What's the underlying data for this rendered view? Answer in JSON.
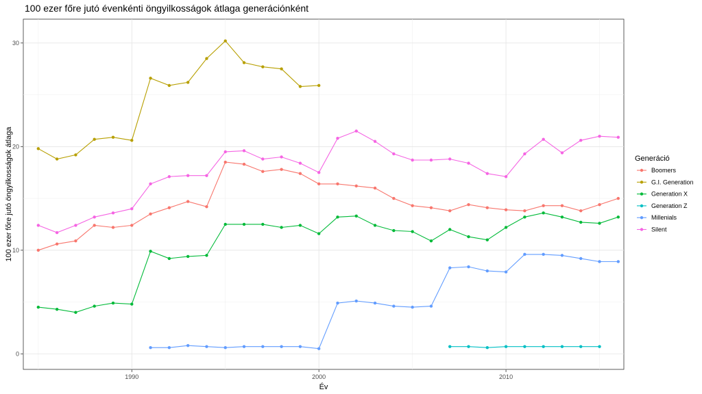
{
  "chart_data": {
    "type": "line",
    "title": "100 ezer főre jutó évenkénti öngyilkosságok átlaga generációnként",
    "xlabel": "Év",
    "ylabel": "100 ezer főre jutó öngyilkosságok átlaga",
    "xlim": [
      1984.2,
      2016.3
    ],
    "ylim": [
      -1.5,
      32.3
    ],
    "x_ticks": [
      1990,
      2000,
      2010
    ],
    "y_ticks": [
      0,
      10,
      20,
      30
    ],
    "grid": true,
    "legend": {
      "title": "Generáció",
      "placement": "right"
    },
    "series": [
      {
        "name": "Boomers",
        "color": "#F8766D",
        "x": [
          1985,
          1986,
          1987,
          1988,
          1989,
          1990,
          1991,
          1992,
          1993,
          1994,
          1995,
          1996,
          1997,
          1998,
          1999,
          2000,
          2001,
          2002,
          2003,
          2004,
          2005,
          2006,
          2007,
          2008,
          2009,
          2010,
          2011,
          2012,
          2013,
          2014,
          2015,
          2016
        ],
        "y": [
          10.0,
          10.6,
          10.9,
          12.4,
          12.2,
          12.4,
          13.5,
          14.1,
          14.7,
          14.2,
          18.5,
          18.3,
          17.6,
          17.8,
          17.4,
          16.4,
          16.4,
          16.2,
          16.0,
          15.0,
          14.3,
          14.1,
          13.8,
          14.4,
          14.1,
          13.9,
          13.8,
          14.3,
          14.3,
          13.8,
          14.4,
          15.0
        ]
      },
      {
        "name": "G.I. Generation",
        "color": "#B79F00",
        "x": [
          1985,
          1986,
          1987,
          1988,
          1989,
          1990,
          1991,
          1992,
          1993,
          1994,
          1995,
          1996,
          1997,
          1998,
          1999,
          2000
        ],
        "y": [
          19.8,
          18.8,
          19.2,
          20.7,
          20.9,
          20.6,
          26.6,
          25.9,
          26.2,
          28.5,
          30.2,
          28.1,
          27.7,
          27.5,
          25.8,
          25.9
        ]
      },
      {
        "name": "Generation X",
        "color": "#00BA38",
        "x": [
          1985,
          1986,
          1987,
          1988,
          1989,
          1990,
          1991,
          1992,
          1993,
          1994,
          1995,
          1996,
          1997,
          1998,
          1999,
          2000,
          2001,
          2002,
          2003,
          2004,
          2005,
          2006,
          2007,
          2008,
          2009,
          2010,
          2011,
          2012,
          2013,
          2014,
          2015,
          2016
        ],
        "y": [
          4.5,
          4.3,
          4.0,
          4.6,
          4.9,
          4.8,
          9.9,
          9.2,
          9.4,
          9.5,
          12.5,
          12.5,
          12.5,
          12.2,
          12.4,
          11.6,
          13.2,
          13.3,
          12.4,
          11.9,
          11.8,
          10.9,
          12.0,
          11.3,
          11.0,
          12.2,
          13.2,
          13.6,
          13.2,
          12.7,
          12.6,
          13.2
        ]
      },
      {
        "name": "Generation Z",
        "color": "#00BFC4",
        "x": [
          2007,
          2008,
          2009,
          2010,
          2011,
          2012,
          2013,
          2014,
          2015
        ],
        "y": [
          0.7,
          0.7,
          0.6,
          0.7,
          0.7,
          0.7,
          0.7,
          0.7,
          0.7
        ]
      },
      {
        "name": "Millenials",
        "color": "#619CFF",
        "x": [
          1991,
          1992,
          1993,
          1994,
          1995,
          1996,
          1997,
          1998,
          1999,
          2000,
          2001,
          2002,
          2003,
          2004,
          2005,
          2006,
          2007,
          2008,
          2009,
          2010,
          2011,
          2012,
          2013,
          2014,
          2015,
          2016
        ],
        "y": [
          0.6,
          0.6,
          0.8,
          0.7,
          0.6,
          0.7,
          0.7,
          0.7,
          0.7,
          0.5,
          4.9,
          5.1,
          4.9,
          4.6,
          4.5,
          4.6,
          8.3,
          8.4,
          8.0,
          7.9,
          9.6,
          9.6,
          9.5,
          9.2,
          8.9,
          8.9
        ]
      },
      {
        "name": "Silent",
        "color": "#F564E3",
        "x": [
          1985,
          1986,
          1987,
          1988,
          1989,
          1990,
          1991,
          1992,
          1993,
          1994,
          1995,
          1996,
          1997,
          1998,
          1999,
          2000,
          2001,
          2002,
          2003,
          2004,
          2005,
          2006,
          2007,
          2008,
          2009,
          2010,
          2011,
          2012,
          2013,
          2014,
          2015,
          2016
        ],
        "y": [
          12.4,
          11.7,
          12.4,
          13.2,
          13.6,
          14.0,
          16.4,
          17.1,
          17.2,
          17.2,
          19.5,
          19.6,
          18.8,
          19.0,
          18.4,
          17.5,
          20.8,
          21.5,
          20.5,
          19.3,
          18.7,
          18.7,
          18.8,
          18.4,
          17.4,
          17.1,
          19.3,
          20.7,
          19.4,
          20.6,
          21.0,
          20.9
        ]
      }
    ]
  }
}
